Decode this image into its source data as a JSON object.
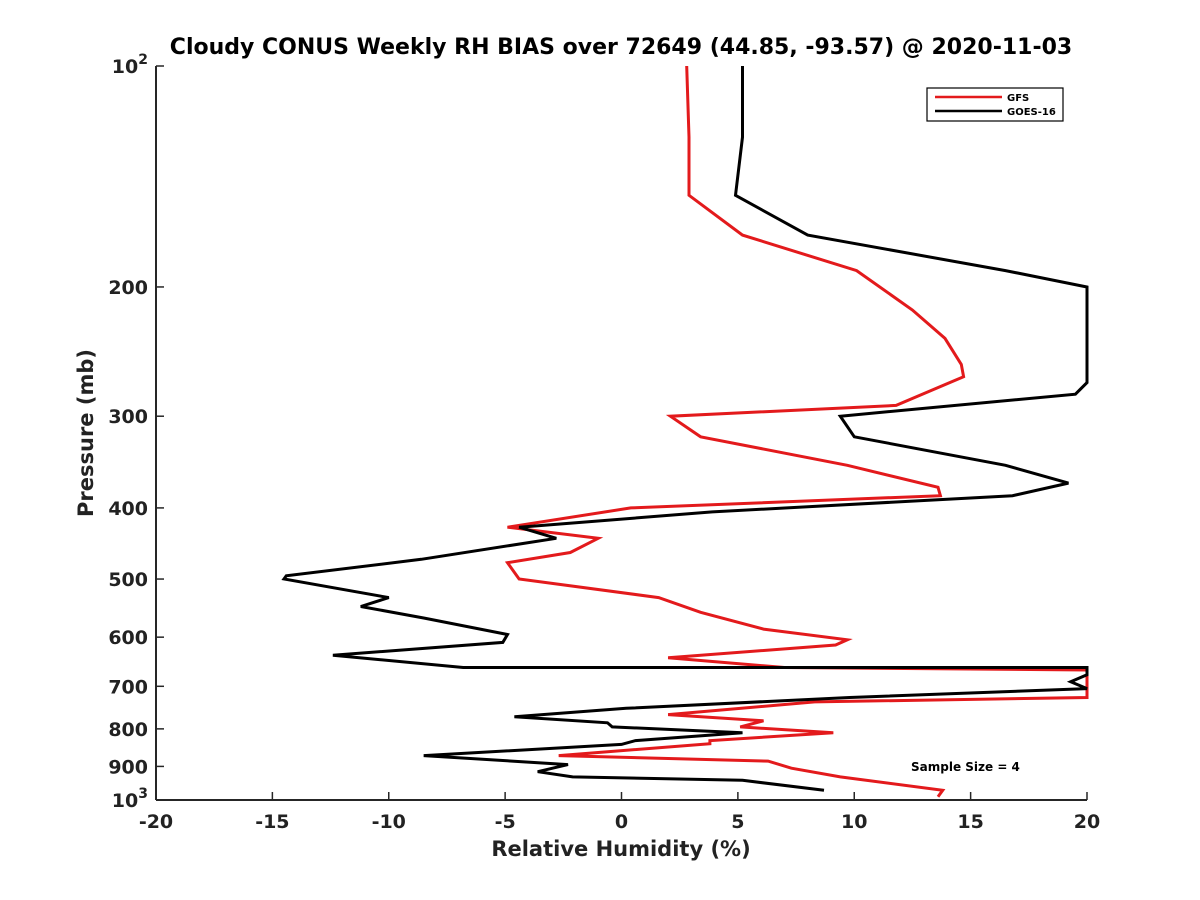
{
  "chart_data": {
    "type": "line",
    "title": "Cloudy CONUS Weekly RH BIAS over 72649 (44.85, -93.57) @ 2020-11-03",
    "xlabel": "Relative Humidity (%)",
    "ylabel": "Pressure (mb)",
    "xlim": [
      -20,
      20
    ],
    "ylim": [
      100,
      1000
    ],
    "y_scale": "log",
    "y_reversed": true,
    "x_ticks": [
      "-20",
      "-15",
      "-10",
      "-5",
      "0",
      "5",
      "10",
      "15",
      "20"
    ],
    "y_ticks": [
      {
        "value": 100,
        "base": "10",
        "exp": "2"
      },
      {
        "value": 200,
        "label": "200"
      },
      {
        "value": 300,
        "label": "300"
      },
      {
        "value": 400,
        "label": "400"
      },
      {
        "value": 500,
        "label": "500"
      },
      {
        "value": 600,
        "label": "600"
      },
      {
        "value": 700,
        "label": "700"
      },
      {
        "value": 800,
        "label": "800"
      },
      {
        "value": 900,
        "label": "900"
      },
      {
        "value": 1000,
        "base": "10",
        "exp": "3"
      }
    ],
    "grid": false,
    "legend_position": "top-right",
    "annotation": "Sample Size = 4",
    "series": [
      {
        "name": "GFS",
        "color": "#e31a1c",
        "points": [
          [
            2.8,
            100
          ],
          [
            2.9,
            125
          ],
          [
            2.9,
            150
          ],
          [
            5.2,
            170
          ],
          [
            10.1,
            190
          ],
          [
            12.5,
            215
          ],
          [
            13.9,
            235
          ],
          [
            14.6,
            255
          ],
          [
            14.7,
            265
          ],
          [
            11.8,
            290
          ],
          [
            2.1,
            300
          ],
          [
            3.4,
            320
          ],
          [
            9.7,
            350
          ],
          [
            13.6,
            375
          ],
          [
            13.7,
            385
          ],
          [
            0.4,
            400
          ],
          [
            -4.9,
            425
          ],
          [
            -1.0,
            440
          ],
          [
            -2.2,
            460
          ],
          [
            -4.9,
            475
          ],
          [
            -4.4,
            500
          ],
          [
            1.6,
            530
          ],
          [
            3.4,
            555
          ],
          [
            6.1,
            585
          ],
          [
            9.7,
            605
          ],
          [
            9.2,
            615
          ],
          [
            2.0,
            640
          ],
          [
            7.0,
            660
          ],
          [
            20.0,
            665
          ],
          [
            20.0,
            700
          ],
          [
            20.0,
            725
          ],
          [
            8.3,
            735
          ],
          [
            2.0,
            765
          ],
          [
            6.1,
            780
          ],
          [
            5.1,
            795
          ],
          [
            9.1,
            810
          ],
          [
            3.8,
            830
          ],
          [
            3.8,
            838
          ],
          [
            -2.7,
            870
          ],
          [
            6.3,
            885
          ],
          [
            7.3,
            905
          ],
          [
            9.4,
            930
          ],
          [
            13.8,
            970
          ],
          [
            13.6,
            990
          ]
        ]
      },
      {
        "name": "GOES-16",
        "color": "#000000",
        "points": [
          [
            5.2,
            100
          ],
          [
            5.2,
            125
          ],
          [
            4.9,
            150
          ],
          [
            8.0,
            170
          ],
          [
            16.5,
            190
          ],
          [
            20.0,
            200
          ],
          [
            20.0,
            270
          ],
          [
            19.5,
            280
          ],
          [
            9.4,
            300
          ],
          [
            10.0,
            320
          ],
          [
            16.5,
            350
          ],
          [
            19.2,
            370
          ],
          [
            16.8,
            385
          ],
          [
            3.9,
            405
          ],
          [
            -4.4,
            425
          ],
          [
            -2.8,
            440
          ],
          [
            -8.6,
            470
          ],
          [
            -14.4,
            495
          ],
          [
            -14.5,
            500
          ],
          [
            -10.0,
            530
          ],
          [
            -11.2,
            545
          ],
          [
            -8.5,
            565
          ],
          [
            -4.9,
            595
          ],
          [
            -5.1,
            610
          ],
          [
            -12.4,
            635
          ],
          [
            -6.8,
            660
          ],
          [
            20.0,
            660
          ],
          [
            20.0,
            675
          ],
          [
            19.3,
            690
          ],
          [
            20.0,
            705
          ],
          [
            9.8,
            725
          ],
          [
            0.2,
            750
          ],
          [
            -4.6,
            770
          ],
          [
            -0.6,
            785
          ],
          [
            -0.4,
            795
          ],
          [
            5.2,
            810
          ],
          [
            0.6,
            830
          ],
          [
            0.0,
            840
          ],
          [
            -8.5,
            870
          ],
          [
            -2.3,
            895
          ],
          [
            -3.6,
            915
          ],
          [
            -2.1,
            930
          ],
          [
            5.2,
            940
          ],
          [
            8.7,
            970
          ]
        ]
      }
    ]
  }
}
